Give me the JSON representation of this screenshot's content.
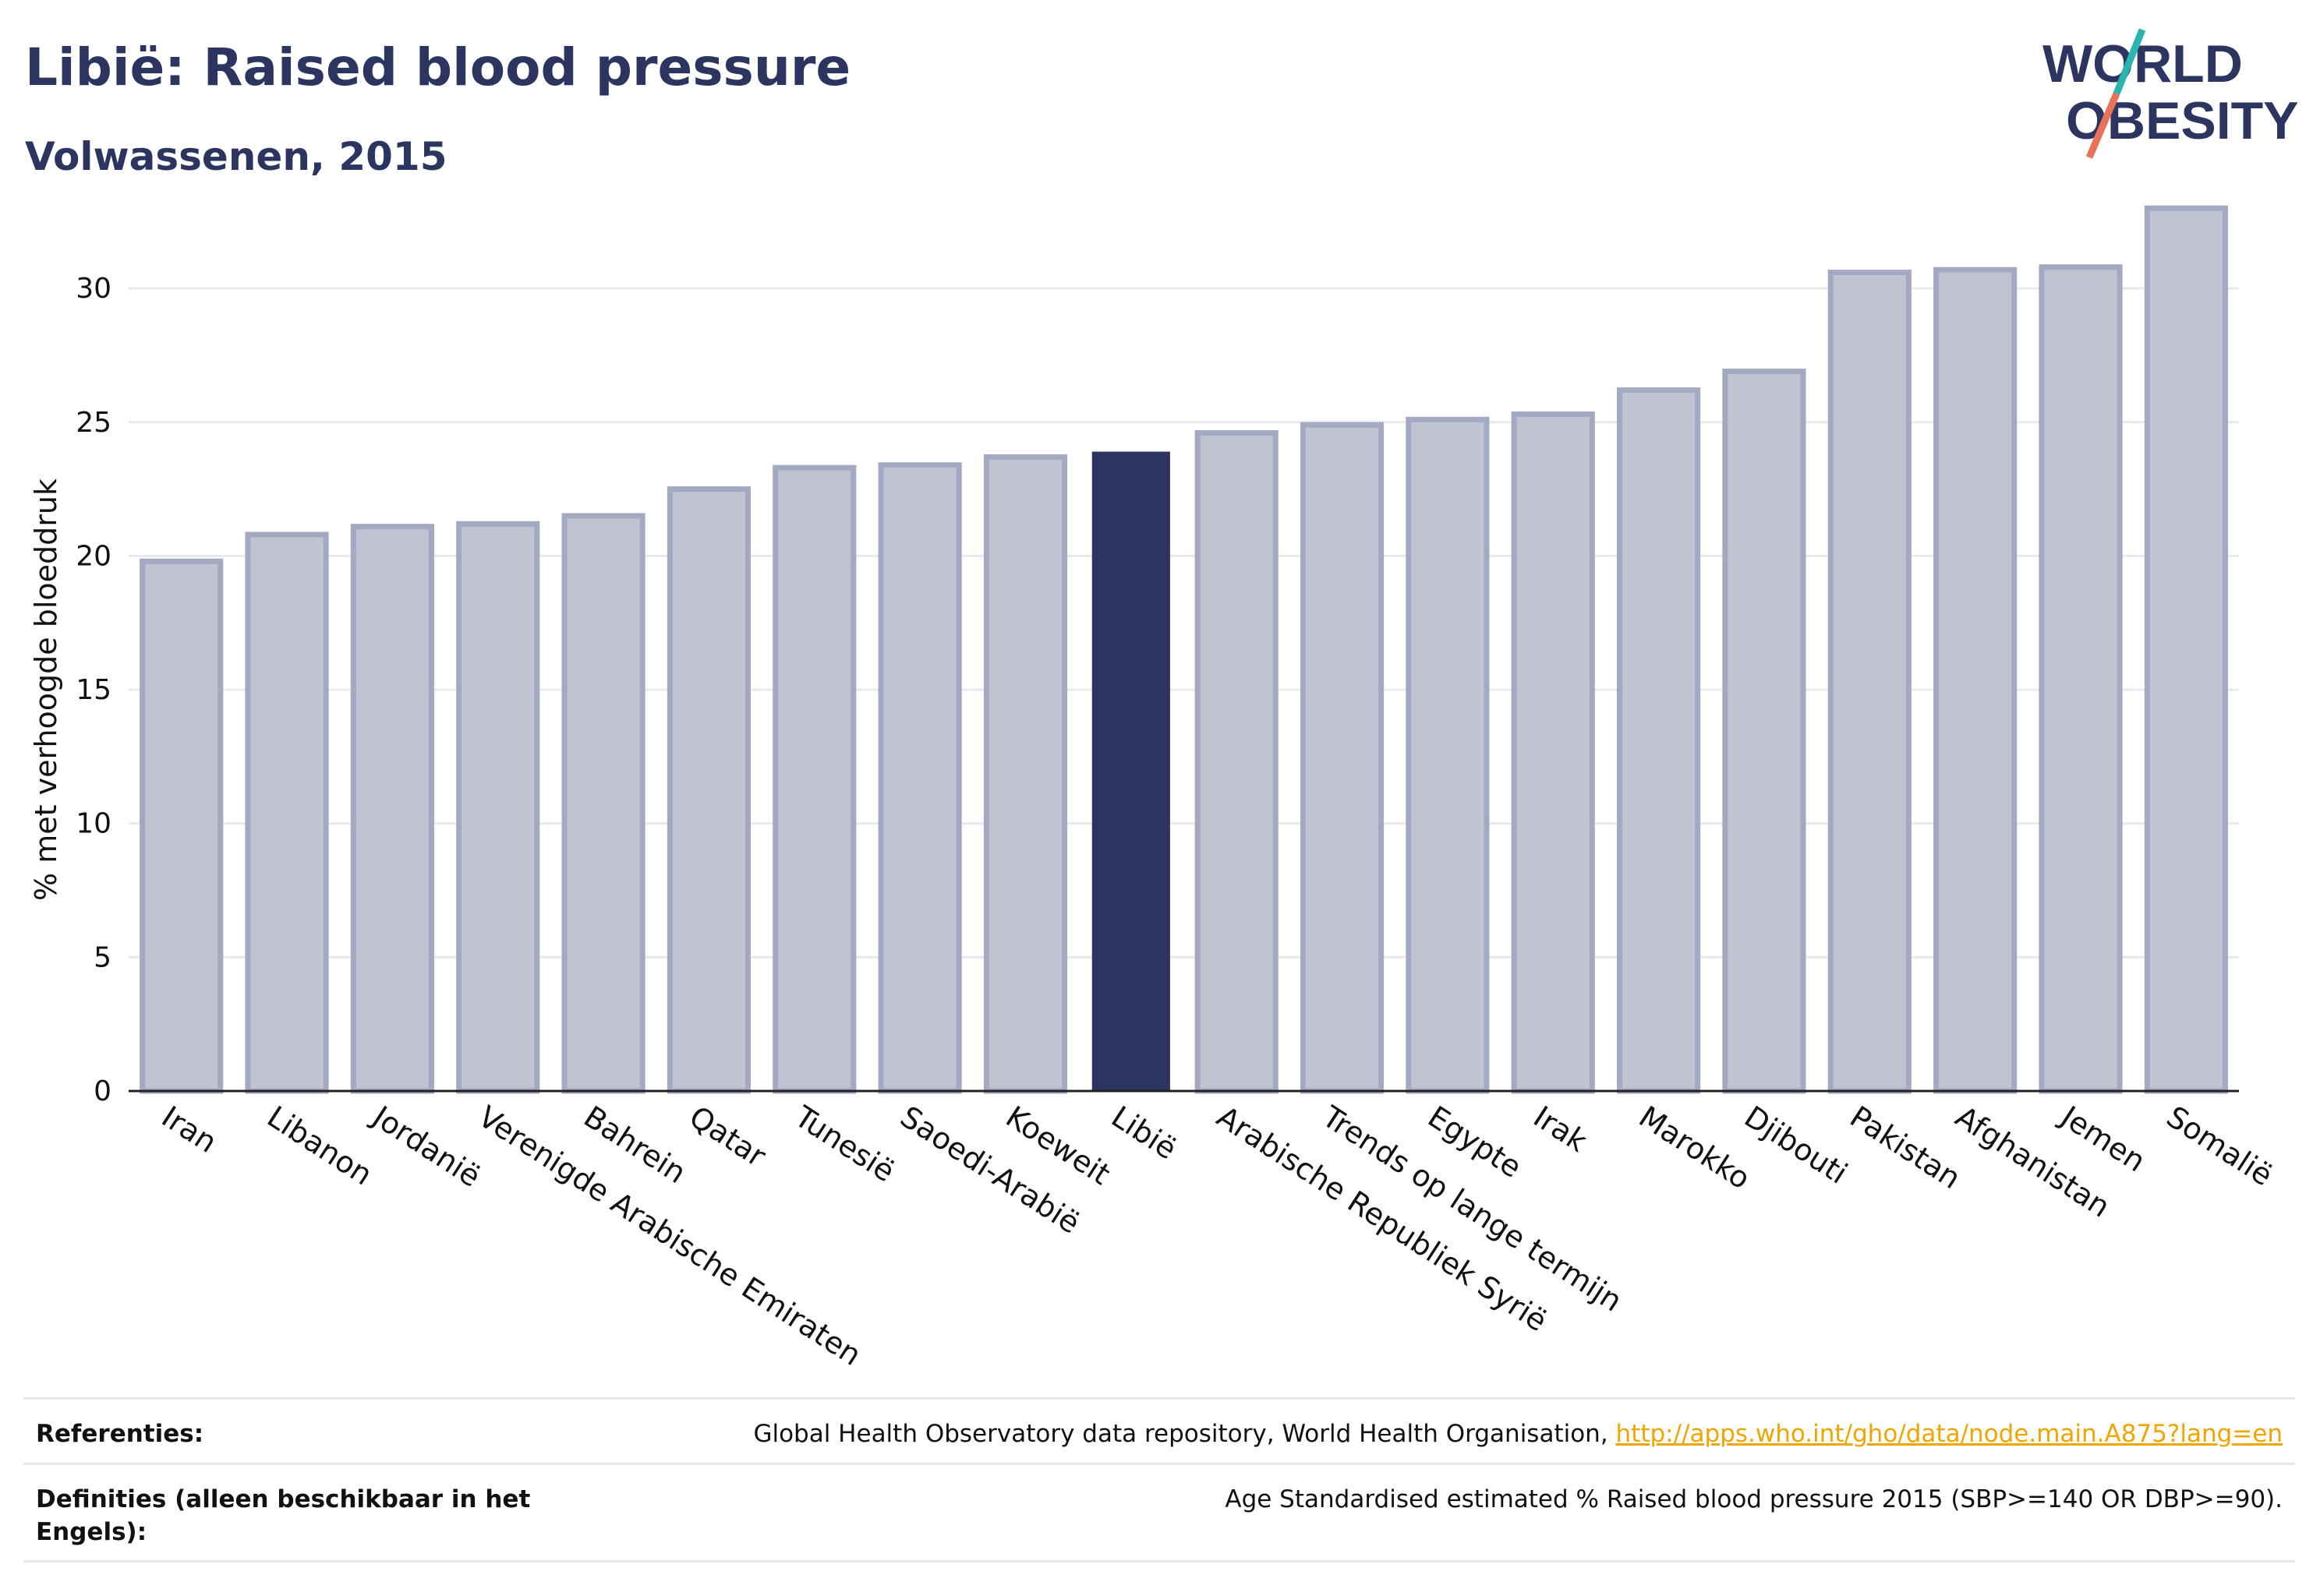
{
  "header": {
    "title": "Libië: Raised blood pressure",
    "subtitle": "Volwassenen, 2015"
  },
  "logo": {
    "line1": "WORLD",
    "line2": "OBESITY"
  },
  "colors": {
    "bar_default": "#c0c4d2",
    "bar_default_stroke": "#a4a9c2",
    "bar_highlight": "#2b3560",
    "text": "#2b3560",
    "link": "#f0a500",
    "logo_teal": "#2bb5b0",
    "logo_coral": "#e8735a"
  },
  "chart_data": {
    "type": "bar",
    "ylabel": "% met verhoogde bloeddruk",
    "ylim": [
      0,
      33.5
    ],
    "yticks": [
      0,
      5,
      10,
      15,
      20,
      25,
      30
    ],
    "grid": true,
    "highlight": "Libië",
    "categories": [
      "Iran",
      "Libanon",
      "Jordanië",
      "Verenigde Arabische Emiraten",
      "Bahrein",
      "Qatar",
      "Tunesië",
      "Saoedi-Arabië",
      "Koeweit",
      "Libië",
      "Arabische Republiek Syrië",
      "Trends op lange termijn",
      "Egypte",
      "Irak",
      "Marokko",
      "Djibouti",
      "Pakistan",
      "Afghanistan",
      "Jemen",
      "Somalië"
    ],
    "values": [
      19.8,
      20.8,
      21.1,
      21.2,
      21.5,
      22.5,
      23.3,
      23.4,
      23.7,
      23.9,
      24.6,
      24.9,
      25.1,
      25.3,
      26.2,
      26.9,
      30.6,
      30.7,
      30.8,
      33.0
    ]
  },
  "footer": {
    "references_label": "Referenties:",
    "references_text": "Global Health Observatory data repository, World Health Organisation,",
    "references_link": "http://apps.who.int/gho/data/node.main.A875?lang=en",
    "definitions_label_line1": "Definities (alleen beschikbaar in het",
    "definitions_label_line2": "Engels):",
    "definitions_text": "Age Standardised estimated % Raised blood pressure 2015 (SBP>=140 OR DBP>=90)."
  }
}
